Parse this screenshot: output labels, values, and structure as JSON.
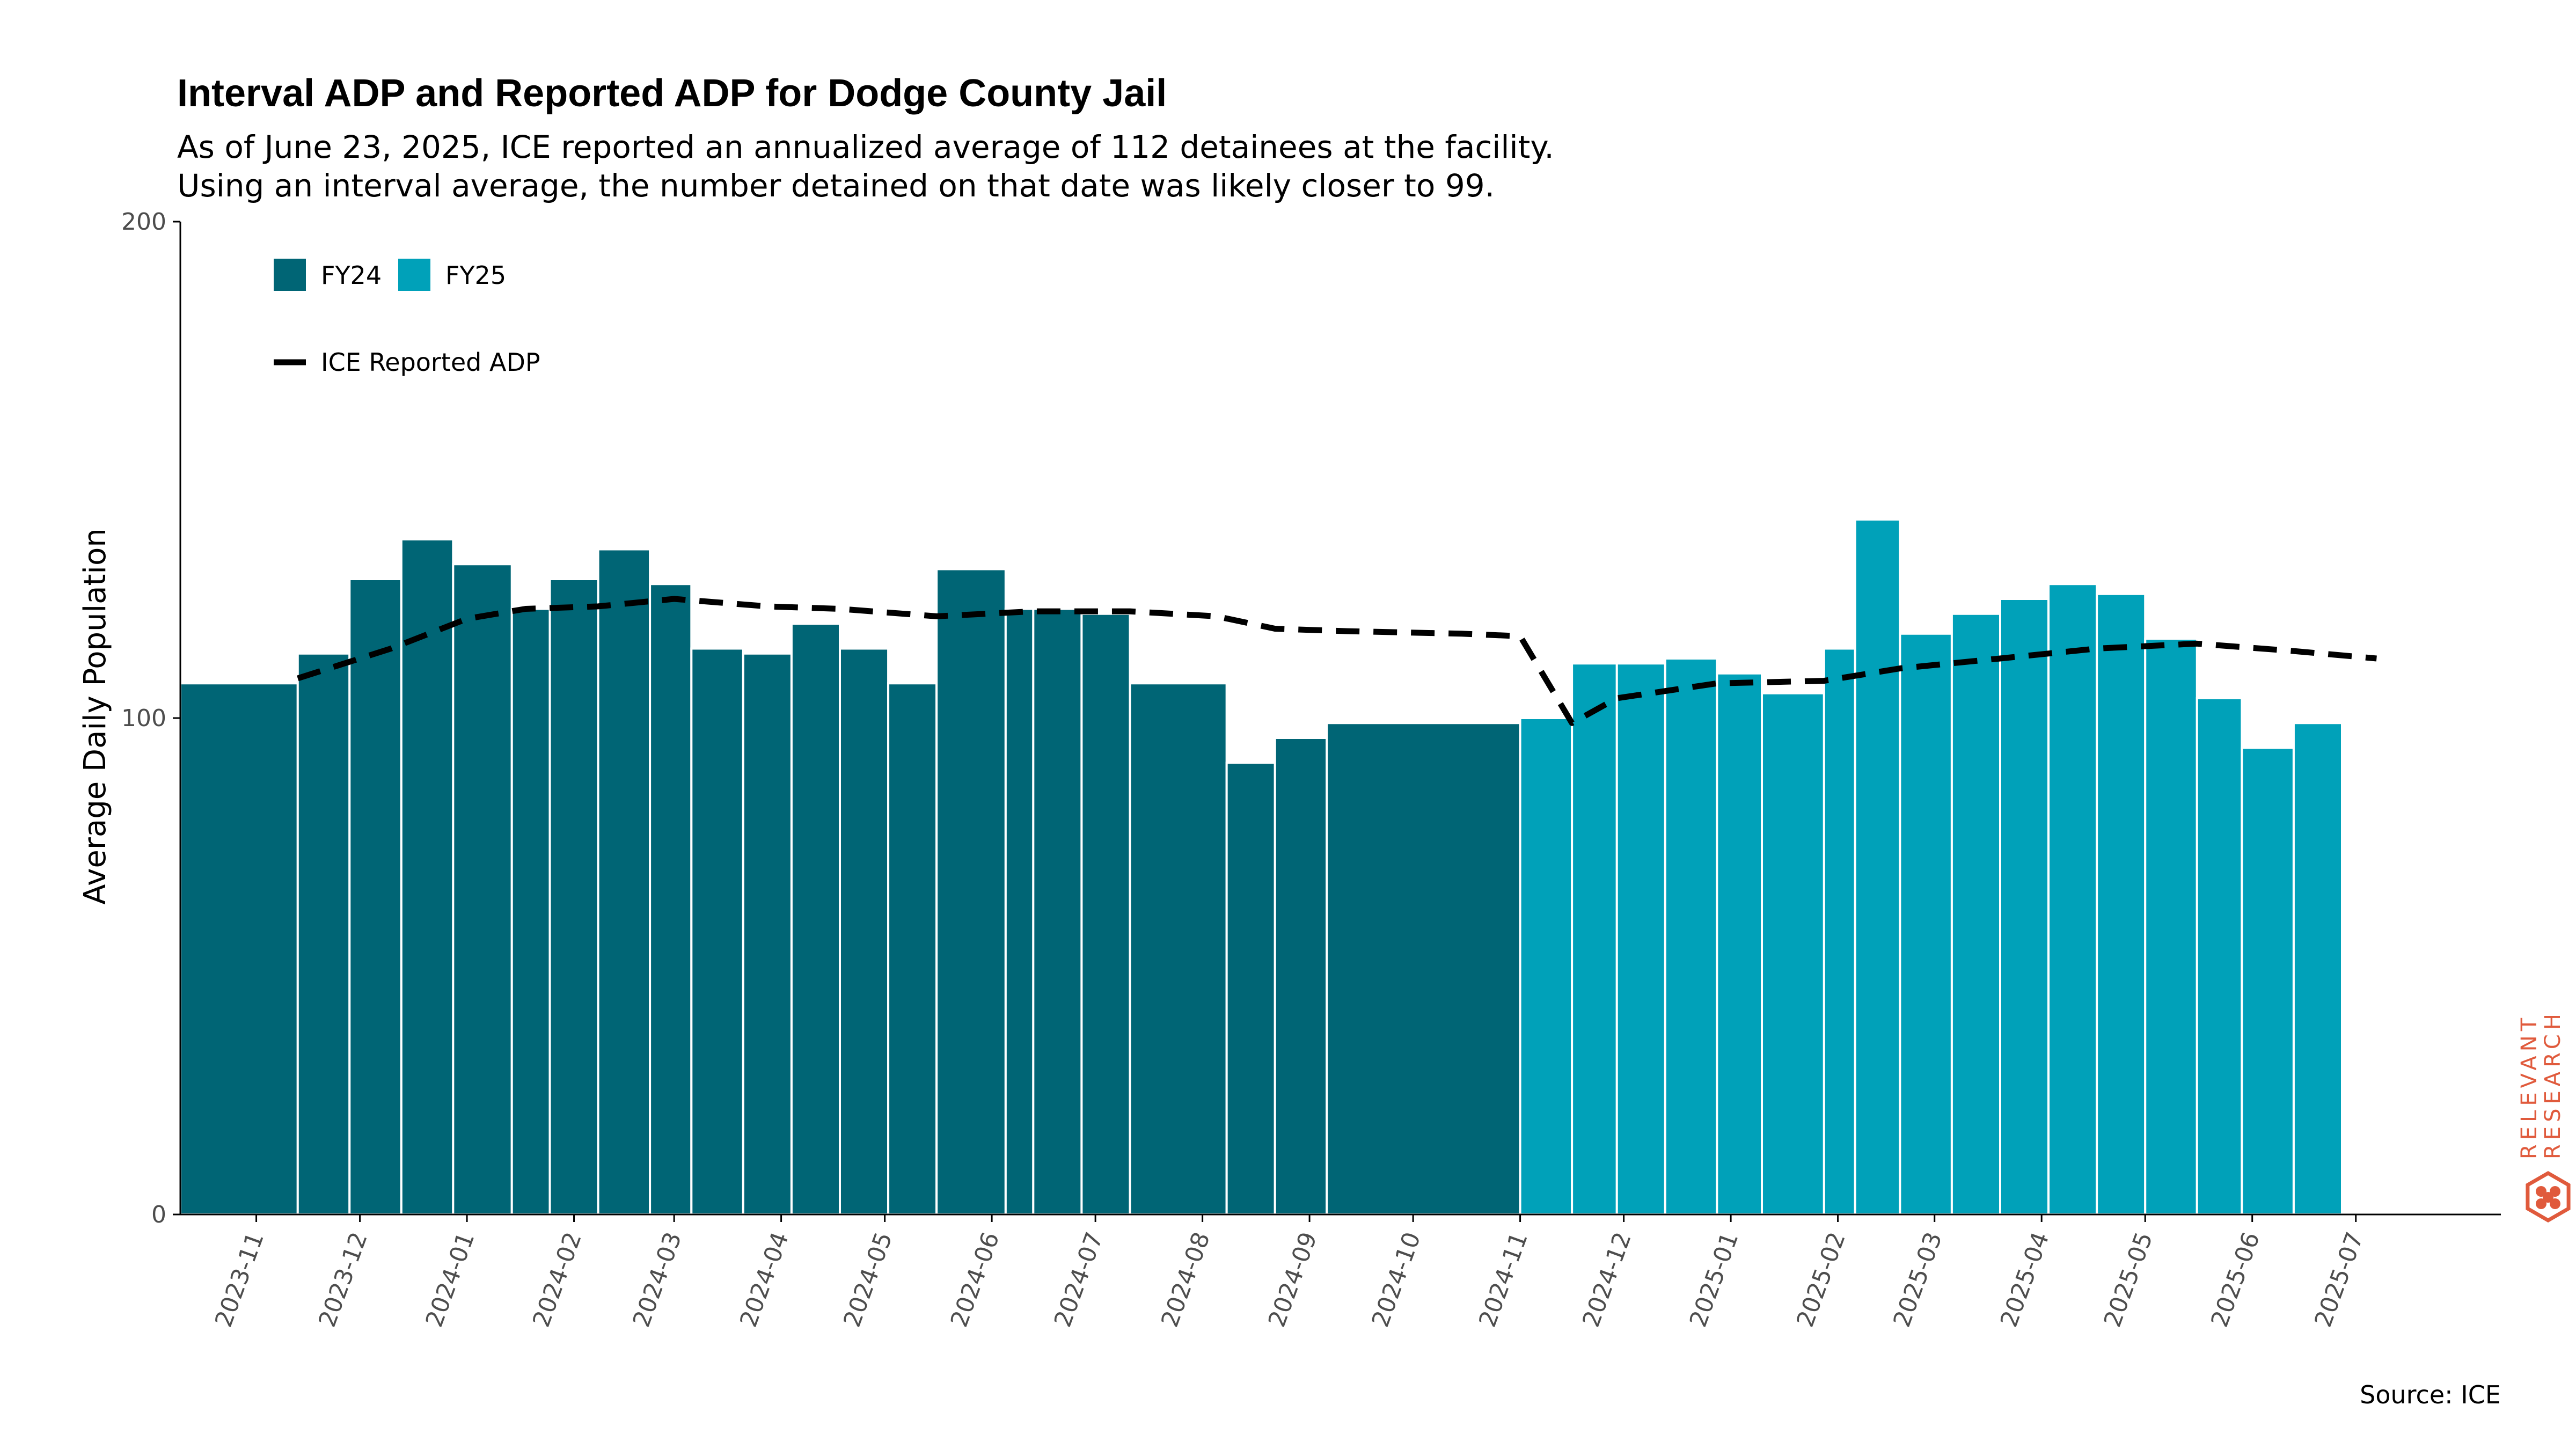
{
  "title": "Interval ADP and Reported ADP for Dodge County Jail",
  "subtitle_lines": [
    "As of June 23, 2025, ICE reported an annualized average of 112 detainees at the facility.",
    "Using an interval average, the number detained on that date was likely closer to 99."
  ],
  "source": "Source: ICE",
  "logo": {
    "line1": "RELEVANT",
    "line2": "RESEARCH",
    "color": "#e05a3c"
  },
  "colors": {
    "FY24": "#006575",
    "FY25": "#00a1b9",
    "line": "#000000",
    "axis": "#000000"
  },
  "chart_data": {
    "type": "bar",
    "title": "Interval ADP and Reported ADP for Dodge County Jail",
    "ylabel": "Average Daily Population",
    "xlabel": "",
    "ylim": [
      0,
      200
    ],
    "yticks": [
      0,
      100,
      200
    ],
    "xlim": [
      "2023-10-10",
      "2025-07-20"
    ],
    "xticks": [
      "2023-11-01",
      "2023-12-01",
      "2024-01-01",
      "2024-02-01",
      "2024-03-01",
      "2024-04-01",
      "2024-05-01",
      "2024-06-01",
      "2024-07-01",
      "2024-08-01",
      "2024-09-01",
      "2024-10-01",
      "2024-11-01",
      "2024-12-01",
      "2025-01-01",
      "2025-02-01",
      "2025-03-01",
      "2025-04-01",
      "2025-05-01",
      "2025-06-01",
      "2025-07-01"
    ],
    "xtick_labels": [
      "2023-11",
      "2023-12",
      "2024-01",
      "2024-02",
      "2024-03",
      "2024-04",
      "2024-05",
      "2024-06",
      "2024-07",
      "2024-08",
      "2024-09",
      "2024-10",
      "2024-11",
      "2024-12",
      "2025-01",
      "2025-02",
      "2025-03",
      "2025-04",
      "2025-05",
      "2025-06",
      "2025-07"
    ],
    "grid": false,
    "legend": {
      "placement": "top-left",
      "entries": [
        "FY24",
        "FY25"
      ],
      "line_entry": "ICE Reported ADP"
    },
    "bars": [
      {
        "start": "2023-10-10",
        "end": "2023-11-13",
        "value": 107,
        "fy": "FY24"
      },
      {
        "start": "2023-11-13",
        "end": "2023-11-28",
        "value": 113,
        "fy": "FY24"
      },
      {
        "start": "2023-11-28",
        "end": "2023-12-13",
        "value": 128,
        "fy": "FY24"
      },
      {
        "start": "2023-12-13",
        "end": "2023-12-28",
        "value": 136,
        "fy": "FY24"
      },
      {
        "start": "2023-12-28",
        "end": "2024-01-14",
        "value": 131,
        "fy": "FY24"
      },
      {
        "start": "2024-01-14",
        "end": "2024-01-25",
        "value": 122,
        "fy": "FY24"
      },
      {
        "start": "2024-01-25",
        "end": "2024-02-08",
        "value": 128,
        "fy": "FY24"
      },
      {
        "start": "2024-02-08",
        "end": "2024-02-23",
        "value": 134,
        "fy": "FY24"
      },
      {
        "start": "2024-02-23",
        "end": "2024-03-06",
        "value": 127,
        "fy": "FY24"
      },
      {
        "start": "2024-03-06",
        "end": "2024-03-21",
        "value": 114,
        "fy": "FY24"
      },
      {
        "start": "2024-03-21",
        "end": "2024-04-04",
        "value": 113,
        "fy": "FY24"
      },
      {
        "start": "2024-04-04",
        "end": "2024-04-18",
        "value": 119,
        "fy": "FY24"
      },
      {
        "start": "2024-04-18",
        "end": "2024-05-02",
        "value": 114,
        "fy": "FY24"
      },
      {
        "start": "2024-05-02",
        "end": "2024-05-16",
        "value": 107,
        "fy": "FY24"
      },
      {
        "start": "2024-05-16",
        "end": "2024-06-05",
        "value": 130,
        "fy": "FY24"
      },
      {
        "start": "2024-06-05",
        "end": "2024-06-13",
        "value": 122,
        "fy": "FY24"
      },
      {
        "start": "2024-06-13",
        "end": "2024-06-27",
        "value": 122,
        "fy": "FY24"
      },
      {
        "start": "2024-06-27",
        "end": "2024-07-11",
        "value": 121,
        "fy": "FY24"
      },
      {
        "start": "2024-07-11",
        "end": "2024-08-08",
        "value": 107,
        "fy": "FY24"
      },
      {
        "start": "2024-08-08",
        "end": "2024-08-22",
        "value": 91,
        "fy": "FY24"
      },
      {
        "start": "2024-08-22",
        "end": "2024-09-06",
        "value": 96,
        "fy": "FY24"
      },
      {
        "start": "2024-09-06",
        "end": "2024-11-01",
        "value": 99,
        "fy": "FY24"
      },
      {
        "start": "2024-11-01",
        "end": "2024-11-16",
        "value": 100,
        "fy": "FY25"
      },
      {
        "start": "2024-11-16",
        "end": "2024-11-29",
        "value": 111,
        "fy": "FY25"
      },
      {
        "start": "2024-11-29",
        "end": "2024-12-13",
        "value": 111,
        "fy": "FY25"
      },
      {
        "start": "2024-12-13",
        "end": "2024-12-28",
        "value": 112,
        "fy": "FY25"
      },
      {
        "start": "2024-12-28",
        "end": "2025-01-10",
        "value": 109,
        "fy": "FY25"
      },
      {
        "start": "2025-01-10",
        "end": "2025-01-28",
        "value": 105,
        "fy": "FY25"
      },
      {
        "start": "2025-01-28",
        "end": "2025-02-06",
        "value": 114,
        "fy": "FY25"
      },
      {
        "start": "2025-02-06",
        "end": "2025-02-19",
        "value": 140,
        "fy": "FY25"
      },
      {
        "start": "2025-02-19",
        "end": "2025-03-06",
        "value": 117,
        "fy": "FY25"
      },
      {
        "start": "2025-03-06",
        "end": "2025-03-20",
        "value": 121,
        "fy": "FY25"
      },
      {
        "start": "2025-03-20",
        "end": "2025-04-03",
        "value": 124,
        "fy": "FY25"
      },
      {
        "start": "2025-04-03",
        "end": "2025-04-17",
        "value": 127,
        "fy": "FY25"
      },
      {
        "start": "2025-04-17",
        "end": "2025-05-01",
        "value": 125,
        "fy": "FY25"
      },
      {
        "start": "2025-05-01",
        "end": "2025-05-16",
        "value": 116,
        "fy": "FY25"
      },
      {
        "start": "2025-05-16",
        "end": "2025-05-29",
        "value": 104,
        "fy": "FY25"
      },
      {
        "start": "2025-05-29",
        "end": "2025-06-13",
        "value": 94,
        "fy": "FY25"
      },
      {
        "start": "2025-06-13",
        "end": "2025-06-27",
        "value": 99,
        "fy": "FY25"
      }
    ],
    "series": [
      {
        "name": "ICE Reported ADP",
        "style": "dashed",
        "points": [
          {
            "x": "2023-11-13",
            "y": 108
          },
          {
            "x": "2023-12-10",
            "y": 114
          },
          {
            "x": "2024-01-01",
            "y": 120
          },
          {
            "x": "2024-01-18",
            "y": 122
          },
          {
            "x": "2024-02-08",
            "y": 122.5
          },
          {
            "x": "2024-03-01",
            "y": 124
          },
          {
            "x": "2024-03-28",
            "y": 122.5
          },
          {
            "x": "2024-04-18",
            "y": 122
          },
          {
            "x": "2024-05-16",
            "y": 120.5
          },
          {
            "x": "2024-06-13",
            "y": 121.5
          },
          {
            "x": "2024-07-11",
            "y": 121.5
          },
          {
            "x": "2024-08-05",
            "y": 120.5
          },
          {
            "x": "2024-08-22",
            "y": 118
          },
          {
            "x": "2024-09-12",
            "y": 117.5
          },
          {
            "x": "2024-10-15",
            "y": 117
          },
          {
            "x": "2024-11-01",
            "y": 116.5
          },
          {
            "x": "2024-11-16",
            "y": 99
          },
          {
            "x": "2024-11-29",
            "y": 104
          },
          {
            "x": "2024-12-28",
            "y": 107
          },
          {
            "x": "2025-01-28",
            "y": 107.5
          },
          {
            "x": "2025-02-19",
            "y": 110
          },
          {
            "x": "2025-03-20",
            "y": 112
          },
          {
            "x": "2025-04-17",
            "y": 114
          },
          {
            "x": "2025-05-16",
            "y": 115
          },
          {
            "x": "2025-06-13",
            "y": 113.5
          },
          {
            "x": "2025-07-07",
            "y": 112
          }
        ]
      }
    ]
  }
}
